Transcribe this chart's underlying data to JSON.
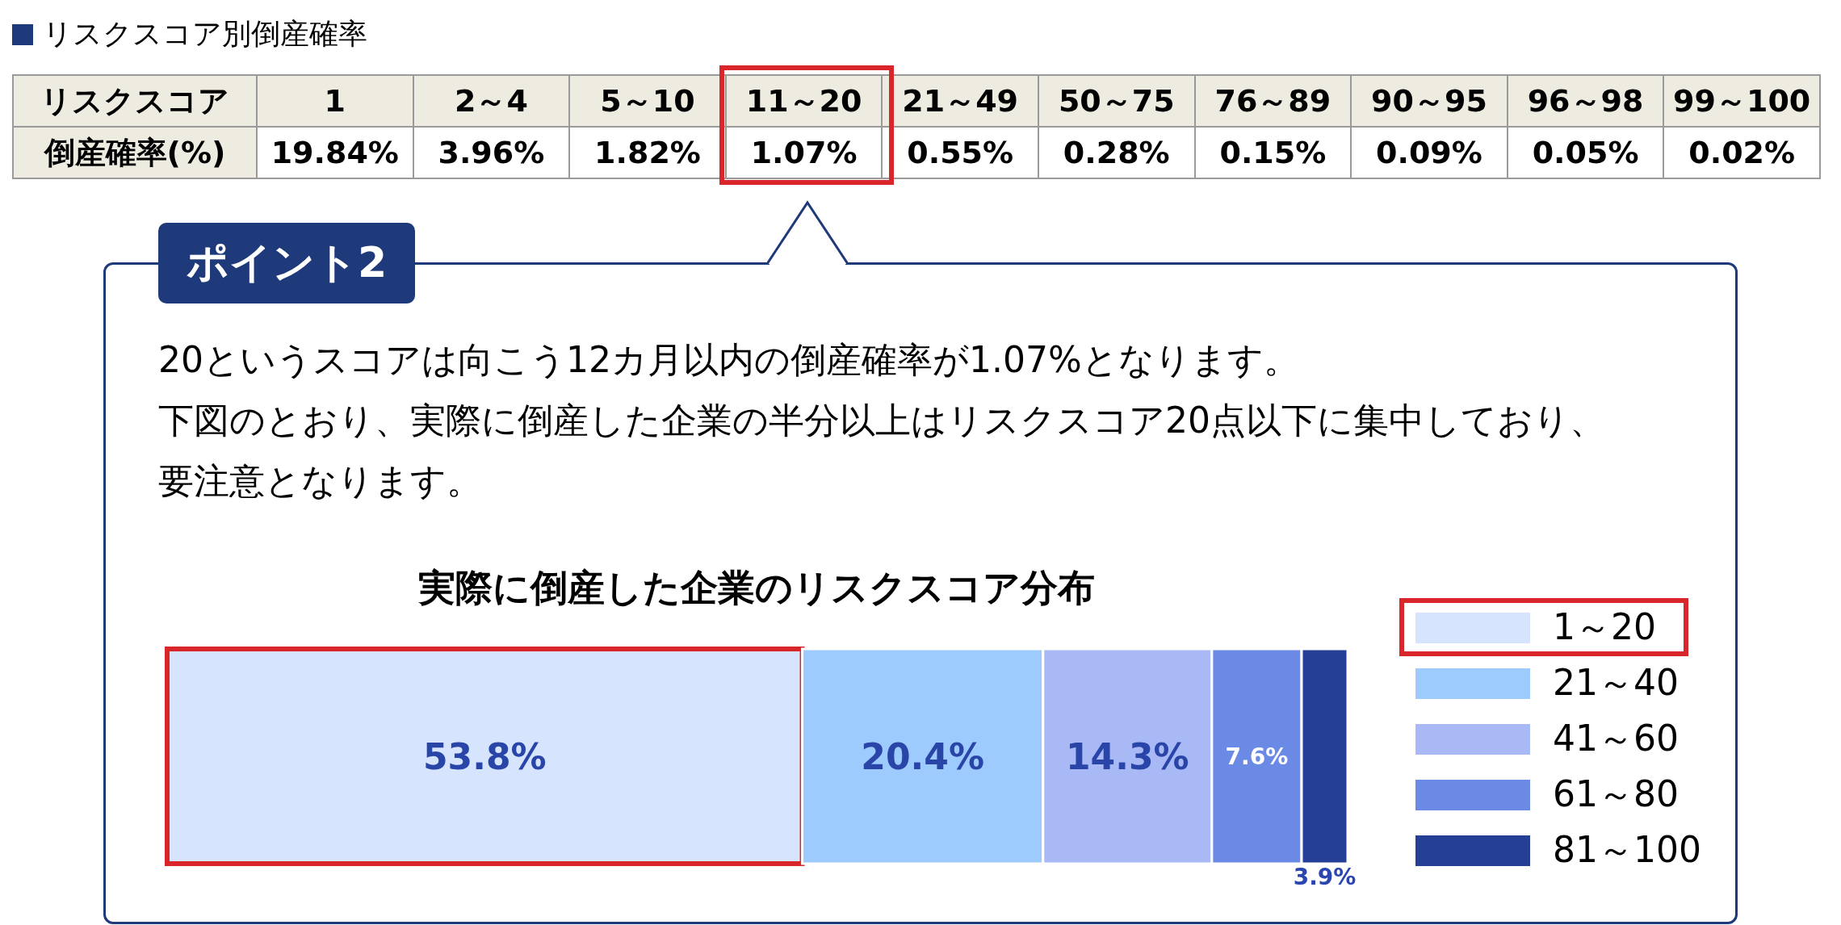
{
  "chart_data": [
    {
      "type": "other",
      "title": "リスクスコア別倒産確率",
      "xlabel": "リスクスコア",
      "ylabel": "倒産確率(%)",
      "categories": [
        "1",
        "2～4",
        "5～10",
        "11～20",
        "21～49",
        "50～75",
        "76～89",
        "90～95",
        "96～98",
        "99～100"
      ],
      "value_labels": [
        "19.84%",
        "3.96%",
        "1.82%",
        "1.07%",
        "0.55%",
        "0.28%",
        "0.15%",
        "0.09%",
        "0.05%",
        "0.02%"
      ]
    },
    {
      "type": "bar",
      "stacked": true,
      "orientation": "horizontal",
      "title": "実際に倒産した企業のリスクスコア分布",
      "categories": [
        null
      ],
      "legend": "right",
      "annotations": [
        "ポイント2",
        "20というスコアは向こう12カ月以内の倒産確率が1.07%となります。",
        "下図のとおり、実際に倒産した企業の半分以上はリスクスコア20点以下に集中しており、",
        "要注意となります。"
      ],
      "series": [
        {
          "name": "1～20",
          "color": "#d6e4fd",
          "values": [
            53.8
          ],
          "value_labels": [
            "53.8%"
          ]
        },
        {
          "name": "21～40",
          "color": "#9ecbfd",
          "values": [
            20.4
          ],
          "value_labels": [
            "20.4%"
          ]
        },
        {
          "name": "41～60",
          "color": "#a8b9f6",
          "values": [
            14.3
          ],
          "value_labels": [
            "14.3%"
          ]
        },
        {
          "name": "61～80",
          "color": "#6a8ae6",
          "values": [
            7.6
          ],
          "value_labels": [
            "7.6%"
          ]
        },
        {
          "name": "81～100",
          "color": "#253f96",
          "values": [
            3.9
          ],
          "value_labels": [
            "3.9%"
          ]
        }
      ]
    }
  ]
}
